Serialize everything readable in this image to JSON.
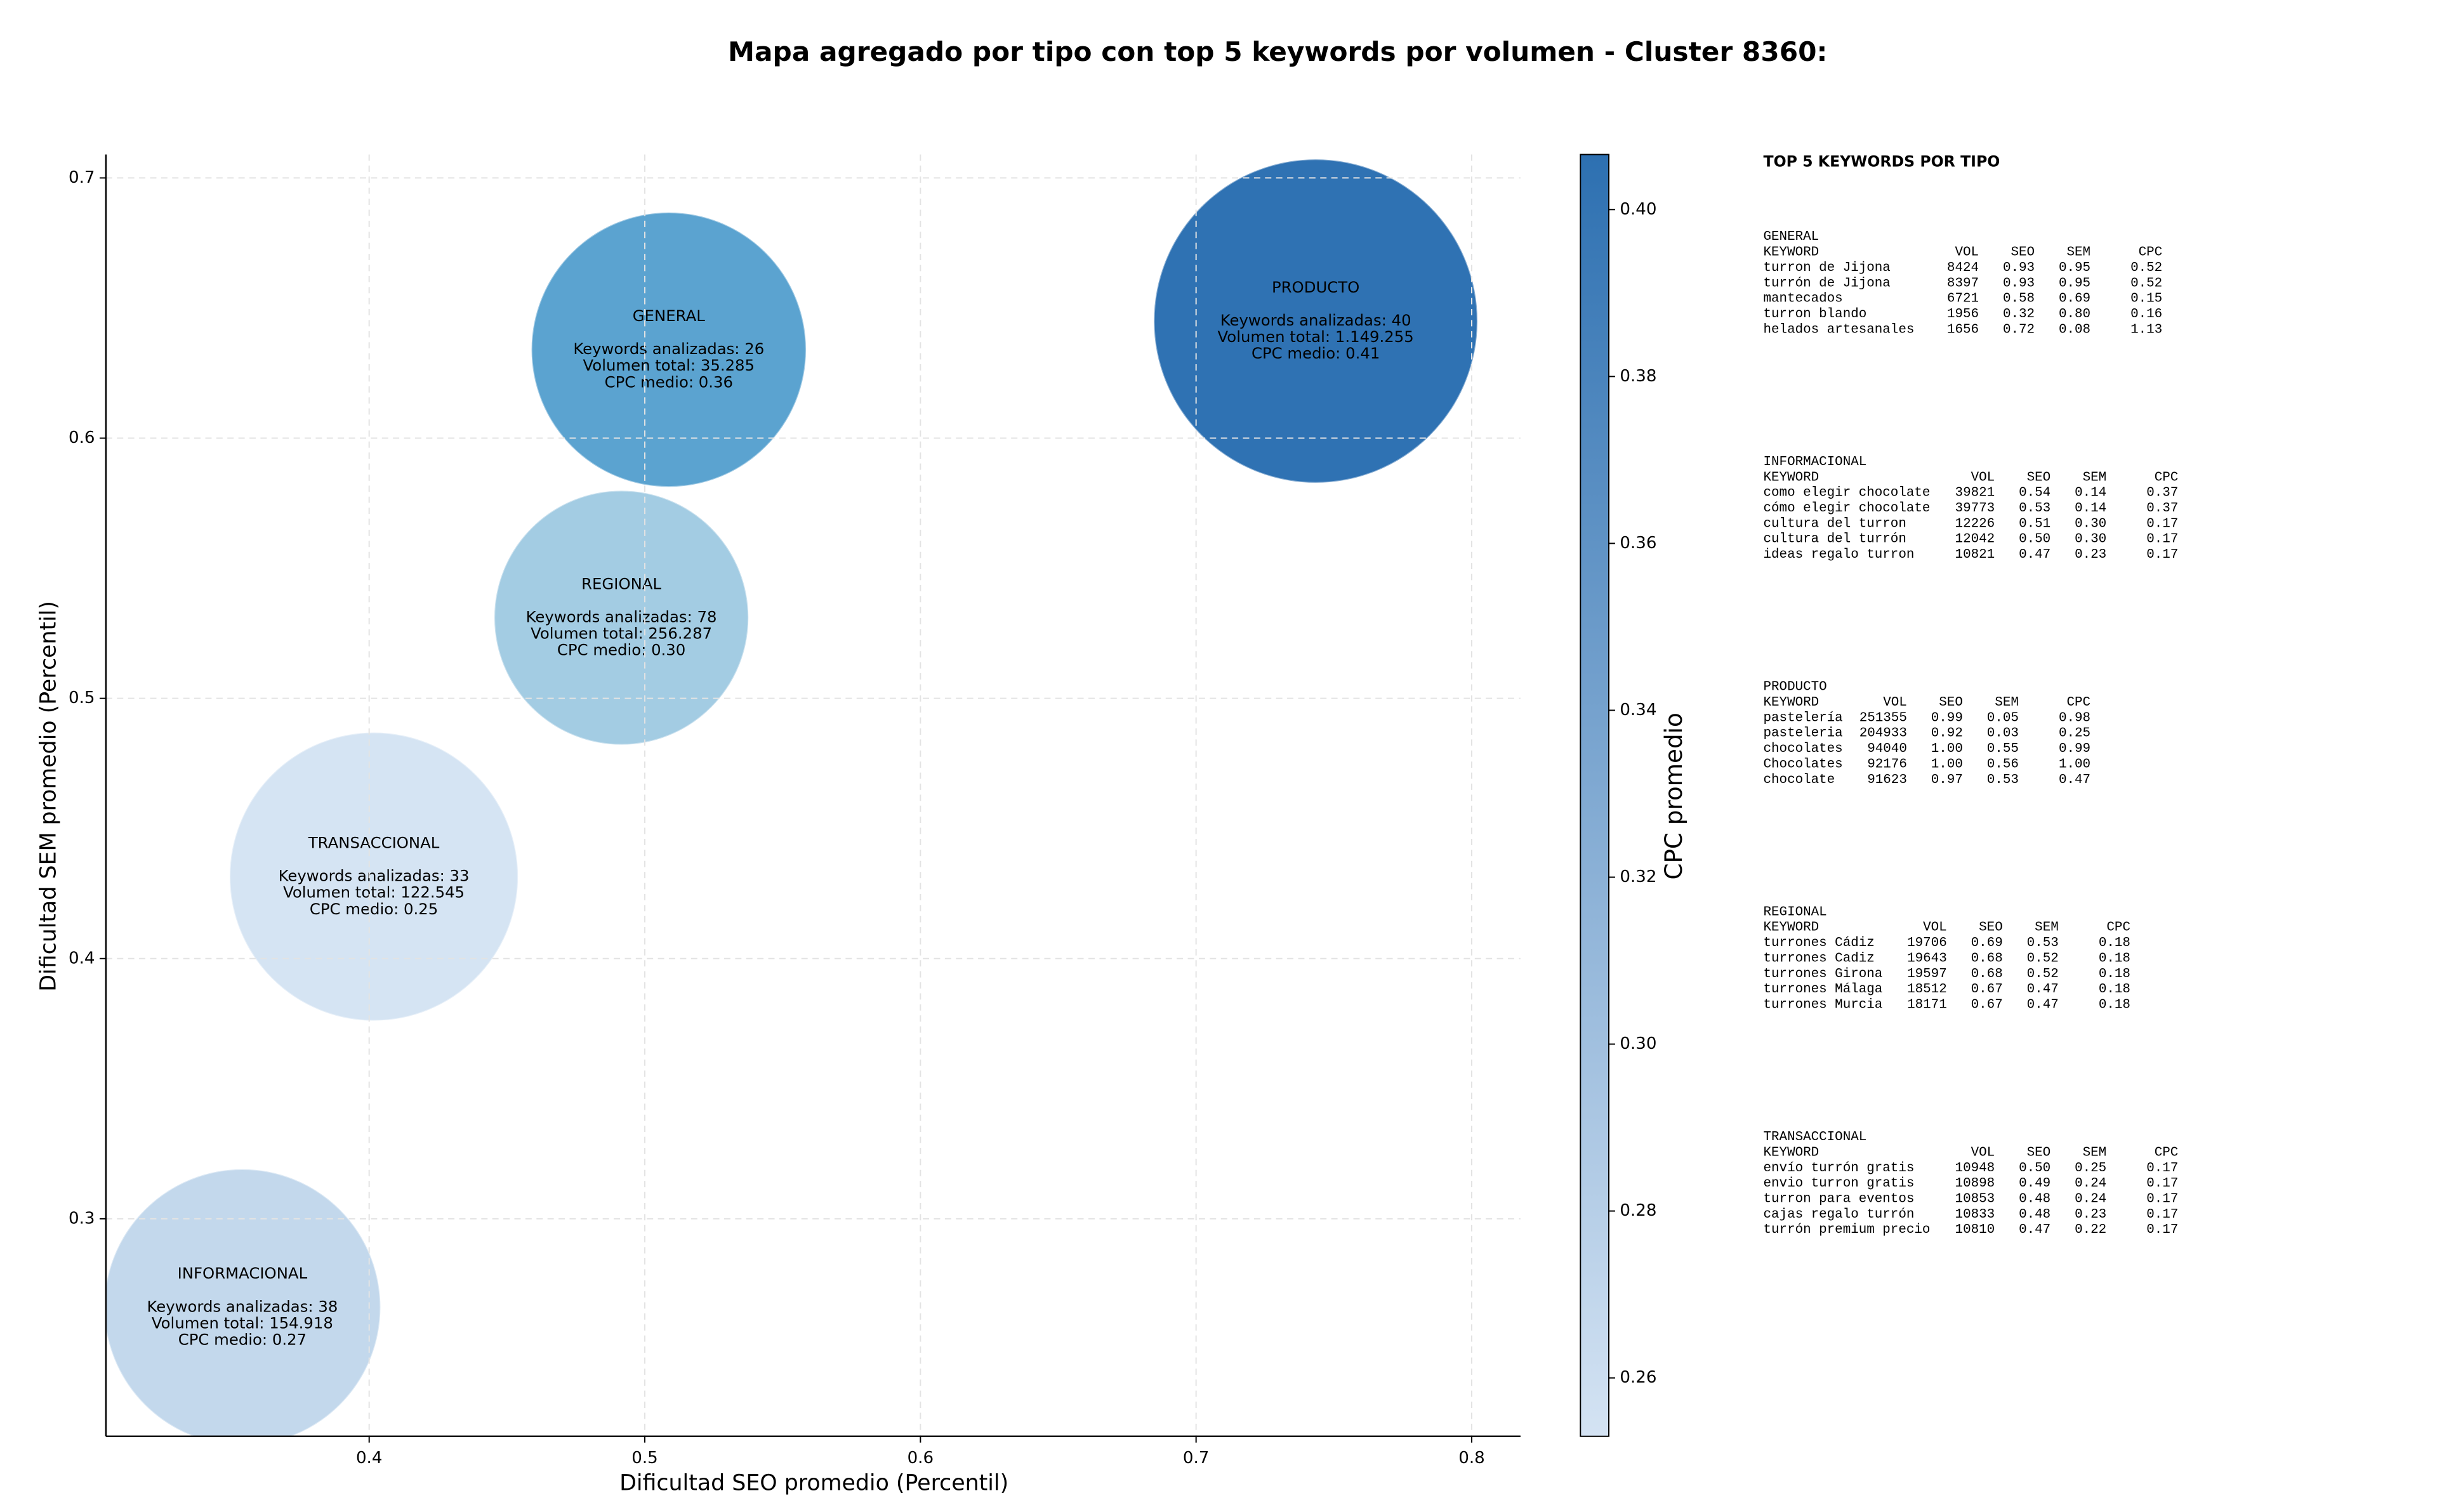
{
  "chart_data": {
    "type": "scatter",
    "title": "Mapa agregado por tipo con top 5 keywords por volumen - Cluster 8360:",
    "xlabel": "Dificultad SEO promedio (Percentil)",
    "ylabel": "Dificultad SEM promedio (Percentil)",
    "x": [
      0.354,
      0.4017,
      0.4915,
      0.5087,
      0.7434
    ],
    "values": [
      0.266,
      0.4315,
      0.531,
      0.634,
      0.645
    ],
    "sizes": [
      0.0498,
      0.052,
      0.0458,
      0.0495,
      0.0584
    ],
    "colors": [
      "#c3d8ec",
      "#d5e4f3",
      "#a3cce3",
      "#5ba3d0",
      "#2f72b3"
    ],
    "labels": [
      [
        "INFORMACIONAL",
        "Keywords analizadas: 38",
        "Volumen total: 154.918",
        "CPC medio: 0.27"
      ],
      [
        "TRANSACCIONAL",
        "Keywords analizadas: 33",
        "Volumen total: 122.545",
        "CPC medio: 0.25"
      ],
      [
        "REGIONAL",
        "Keywords analizadas: 78",
        "Volumen total: 256.287",
        "CPC medio: 0.30"
      ],
      [
        "GENERAL",
        "Keywords analizadas: 26",
        "Volumen total: 35.285",
        "CPC medio: 0.36"
      ],
      [
        "PRODUCTO",
        "Keywords analizadas: 40",
        "Volumen total: 1.149.255",
        "CPC medio: 0.41"
      ]
    ],
    "xlim": [
      0.3045,
      0.8177
    ],
    "ylim": [
      0.2164,
      0.709
    ],
    "xticks": [
      0.4,
      0.5,
      0.6,
      0.7,
      0.8
    ],
    "yticks": [
      0.3,
      0.4,
      0.5,
      0.6,
      0.7
    ],
    "grid": true,
    "colorbar": {
      "label": "CPC promedio",
      "lim": [
        0.253,
        0.4066
      ],
      "colors": [
        "#d4e3f3",
        "#2d70b1"
      ],
      "ticks": [
        0.26,
        0.28,
        {
          "value": 0.3,
          "label": "0.30"
        },
        0.32,
        0.34,
        0.36,
        0.38,
        {
          "value": 0.4,
          "label": "0.40"
        }
      ]
    }
  },
  "side_panel": {
    "title": "TOP 5 KEYWORDS POR TIPO",
    "columns": [
      "KEYWORD",
      "VOL",
      "SEO",
      "SEM",
      "CPC"
    ],
    "groups": [
      {
        "name": "GENERAL",
        "rows": [
          [
            "turron de Jijona",
            "8424",
            "0.93",
            "0.95",
            "0.52"
          ],
          [
            "turrón de Jijona",
            "8397",
            "0.93",
            "0.95",
            "0.52"
          ],
          [
            "mantecados",
            "6721",
            "0.58",
            "0.69",
            "0.15"
          ],
          [
            "turron blando",
            "1956",
            "0.32",
            "0.80",
            "0.16"
          ],
          [
            "helados artesanales",
            "1656",
            "0.72",
            "0.08",
            "1.13"
          ]
        ]
      },
      {
        "name": "INFORMACIONAL",
        "rows": [
          [
            "como elegir chocolate",
            "39821",
            "0.54",
            "0.14",
            "0.37"
          ],
          [
            "cómo elegir chocolate",
            "39773",
            "0.53",
            "0.14",
            "0.37"
          ],
          [
            "cultura del turron",
            "12226",
            "0.51",
            "0.30",
            "0.17"
          ],
          [
            "cultura del turrón",
            "12042",
            "0.50",
            "0.30",
            "0.17"
          ],
          [
            "ideas regalo turron",
            "10821",
            "0.47",
            "0.23",
            "0.17"
          ]
        ]
      },
      {
        "name": "PRODUCTO",
        "rows": [
          [
            "pastelería",
            "251355",
            "0.99",
            "0.05",
            "0.98"
          ],
          [
            "pasteleria",
            "204933",
            "0.92",
            "0.03",
            "0.25"
          ],
          [
            "chocolates",
            "94040",
            "1.00",
            "0.55",
            "0.99"
          ],
          [
            "Chocolates",
            "92176",
            "1.00",
            "0.56",
            "1.00"
          ],
          [
            "chocolate",
            "91623",
            "0.97",
            "0.53",
            "0.47"
          ]
        ]
      },
      {
        "name": "REGIONAL",
        "rows": [
          [
            "turrones Cádiz",
            "19706",
            "0.69",
            "0.53",
            "0.18"
          ],
          [
            "turrones Cadiz",
            "19643",
            "0.68",
            "0.52",
            "0.18"
          ],
          [
            "turrones Girona",
            "19597",
            "0.68",
            "0.52",
            "0.18"
          ],
          [
            "turrones Málaga",
            "18512",
            "0.67",
            "0.47",
            "0.18"
          ],
          [
            "turrones Murcia",
            "18171",
            "0.67",
            "0.47",
            "0.18"
          ]
        ]
      },
      {
        "name": "TRANSACCIONAL",
        "rows": [
          [
            "envío turrón gratis",
            "10948",
            "0.50",
            "0.25",
            "0.17"
          ],
          [
            "envio turron gratis",
            "10898",
            "0.49",
            "0.24",
            "0.17"
          ],
          [
            "turron para eventos",
            "10853",
            "0.48",
            "0.24",
            "0.17"
          ],
          [
            "cajas regalo turrón",
            "10833",
            "0.48",
            "0.23",
            "0.17"
          ],
          [
            "turrón premium precio",
            "10810",
            "0.47",
            "0.22",
            "0.17"
          ]
        ]
      }
    ]
  }
}
